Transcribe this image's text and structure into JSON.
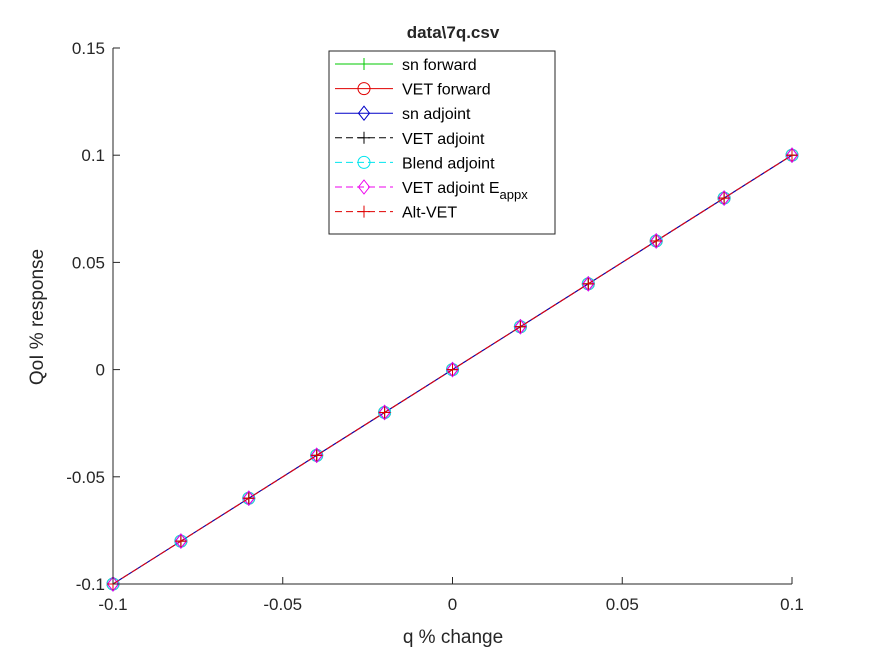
{
  "chart_data": {
    "type": "line",
    "title": "data\\7q.csv",
    "xlabel": "q % change",
    "ylabel": "QoI % response",
    "xlim": [
      -0.1,
      0.1
    ],
    "ylim": [
      -0.1,
      0.15
    ],
    "xticks": [
      -0.1,
      -0.05,
      0,
      0.05,
      0.1
    ],
    "xtick_labels": [
      "-0.1",
      "-0.05",
      "0",
      "0.05",
      "0.1"
    ],
    "yticks": [
      -0.1,
      -0.05,
      0,
      0.05,
      0.1,
      0.15
    ],
    "ytick_labels": [
      "-0.1",
      "-0.05",
      "0",
      "0.05",
      "0.1",
      "0.15"
    ],
    "grid": false,
    "legend_position": "top-center",
    "x": [
      -0.1,
      -0.08,
      -0.06,
      -0.04,
      -0.02,
      0,
      0.02,
      0.04,
      0.06,
      0.08,
      0.1
    ],
    "series": [
      {
        "name": "sn forward",
        "color": "#00c800",
        "line": "solid",
        "marker": "plus",
        "values": [
          -0.1,
          -0.08,
          -0.06,
          -0.04,
          -0.02,
          0,
          0.02,
          0.04,
          0.06,
          0.08,
          0.1
        ]
      },
      {
        "name": "VET forward",
        "color": "#e00000",
        "line": "solid",
        "marker": "circle",
        "values": [
          -0.1,
          -0.08,
          -0.06,
          -0.04,
          -0.02,
          0,
          0.02,
          0.04,
          0.06,
          0.08,
          0.1
        ]
      },
      {
        "name": "sn adjoint",
        "color": "#0000c8",
        "line": "solid",
        "marker": "diamond",
        "values": [
          -0.1,
          -0.08,
          -0.06,
          -0.04,
          -0.02,
          0,
          0.02,
          0.04,
          0.06,
          0.08,
          0.1
        ]
      },
      {
        "name": "VET adjoint",
        "color": "#000000",
        "line": "dashed",
        "marker": "plus",
        "values": [
          -0.1,
          -0.08,
          -0.06,
          -0.04,
          -0.02,
          0,
          0.02,
          0.04,
          0.06,
          0.08,
          0.1
        ]
      },
      {
        "name": "Blend adjoint",
        "color": "#00e5ee",
        "line": "dashed",
        "marker": "circle",
        "values": [
          -0.1,
          -0.08,
          -0.06,
          -0.04,
          -0.02,
          0,
          0.02,
          0.04,
          0.06,
          0.08,
          0.1
        ]
      },
      {
        "name": "VET adjoint E",
        "name_subscript": "appx",
        "color": "#ee00ee",
        "line": "dashed",
        "marker": "diamond",
        "values": [
          -0.1,
          -0.08,
          -0.06,
          -0.04,
          -0.02,
          0,
          0.02,
          0.04,
          0.06,
          0.08,
          0.1
        ]
      },
      {
        "name": "Alt-VET",
        "color": "#e00000",
        "line": "dashed",
        "marker": "plus",
        "values": [
          -0.1,
          -0.08,
          -0.06,
          -0.04,
          -0.02,
          0,
          0.02,
          0.04,
          0.06,
          0.08,
          0.1
        ]
      }
    ]
  }
}
